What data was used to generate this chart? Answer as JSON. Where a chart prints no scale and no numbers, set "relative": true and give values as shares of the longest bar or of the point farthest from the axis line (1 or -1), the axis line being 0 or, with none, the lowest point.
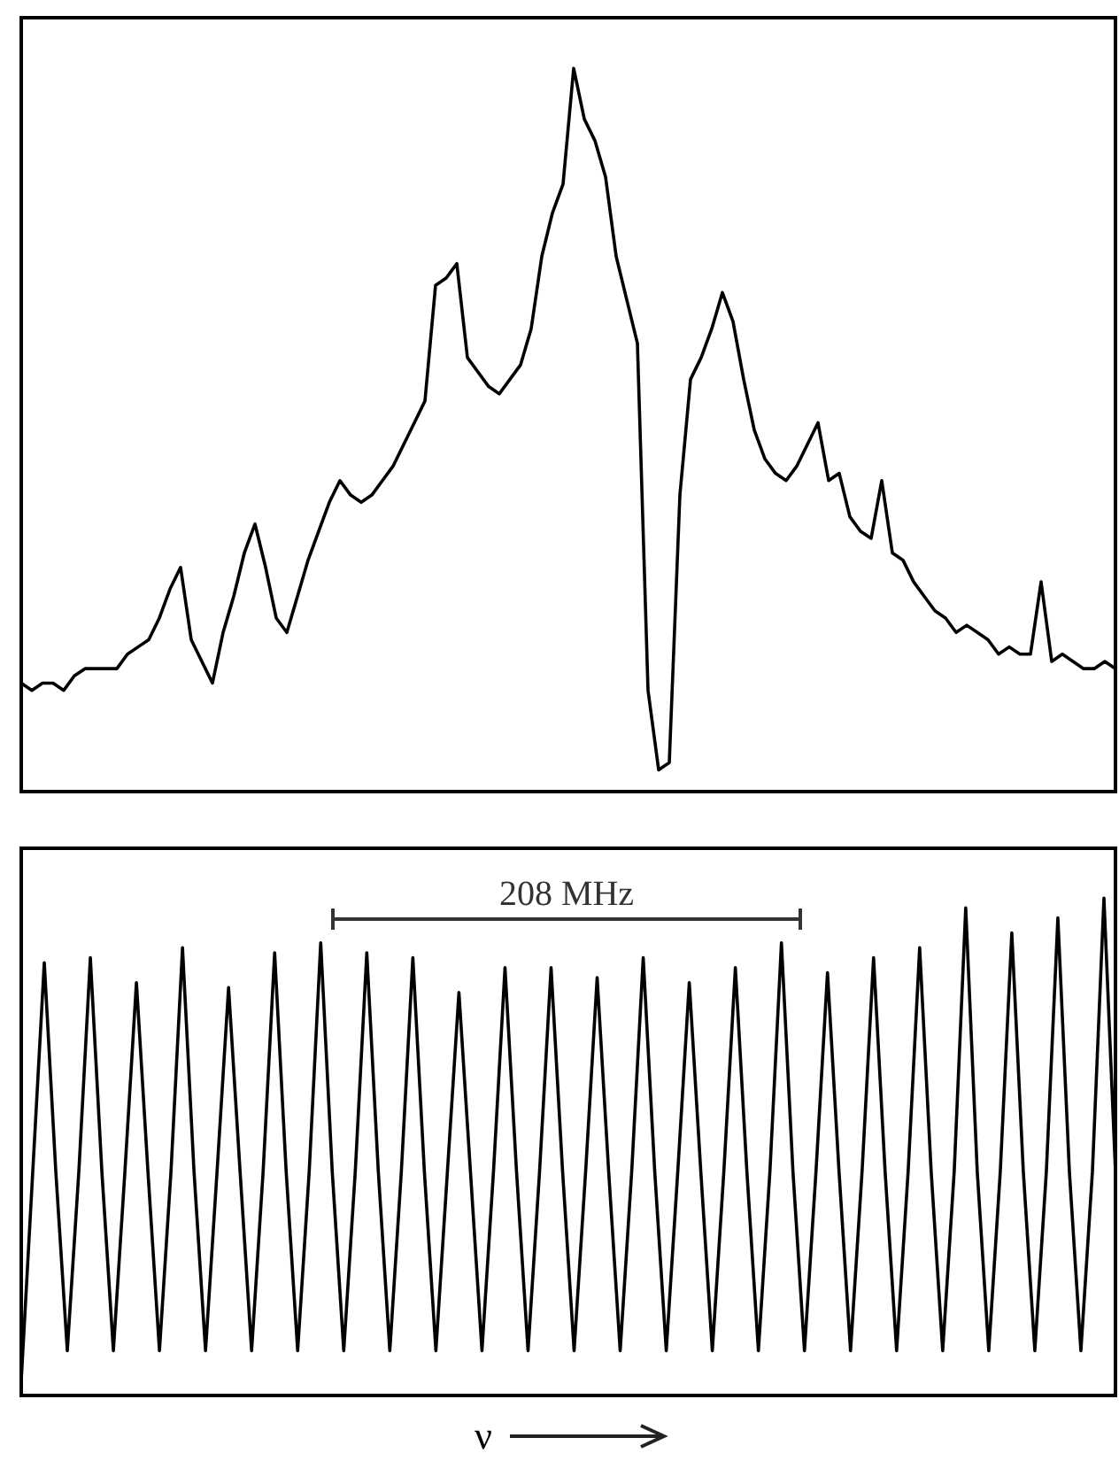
{
  "chart_data": [
    {
      "type": "line",
      "relative": true,
      "categories": [
        null,
        null,
        null,
        null,
        null,
        null,
        null,
        null,
        null,
        null,
        null,
        null,
        null,
        null,
        null,
        null,
        null,
        null,
        null,
        null,
        null,
        null,
        null,
        null,
        null,
        null,
        null,
        null,
        null,
        null,
        null,
        null,
        null,
        null,
        null,
        null,
        null,
        null,
        null,
        null,
        null,
        null,
        null,
        null,
        null,
        null,
        null,
        null,
        null,
        null,
        null,
        null,
        null,
        null,
        null,
        null,
        null,
        null,
        null,
        null,
        null,
        null,
        null,
        null,
        null,
        null,
        null,
        null,
        null,
        null,
        null,
        null,
        null,
        null,
        null,
        null,
        null,
        null,
        null,
        null,
        null,
        null,
        null,
        null,
        null,
        null,
        null,
        null,
        null,
        null,
        null,
        null,
        null,
        null,
        null,
        null,
        null,
        null,
        null,
        null,
        null,
        null,
        null,
        null
      ],
      "series": [
        {
          "color": "#000000",
          "values": [
            0.15,
            0.14,
            0.15,
            0.15,
            0.14,
            0.16,
            0.17,
            0.17,
            0.17,
            0.17,
            0.19,
            0.2,
            0.21,
            0.24,
            0.28,
            0.31,
            0.21,
            0.18,
            0.15,
            0.22,
            0.27,
            0.33,
            0.37,
            0.31,
            0.24,
            0.22,
            0.27,
            0.32,
            0.36,
            0.4,
            0.43,
            0.41,
            0.4,
            0.41,
            0.43,
            0.45,
            0.48,
            0.51,
            0.54,
            0.7,
            0.71,
            0.73,
            0.6,
            0.58,
            0.56,
            0.55,
            0.57,
            0.59,
            0.64,
            0.74,
            0.8,
            0.84,
            1.0,
            0.93,
            0.9,
            0.85,
            0.74,
            0.68,
            0.62,
            0.14,
            0.03,
            0.04,
            0.41,
            0.57,
            0.6,
            0.64,
            0.69,
            0.65,
            0.57,
            0.5,
            0.46,
            0.44,
            0.43,
            0.45,
            0.48,
            0.51,
            0.43,
            0.44,
            0.38,
            0.36,
            0.35,
            0.43,
            0.33,
            0.32,
            0.29,
            0.27,
            0.25,
            0.24,
            0.22,
            0.23,
            0.22,
            0.21,
            0.19,
            0.2,
            0.19,
            0.19,
            0.29,
            0.18,
            0.19,
            0.18,
            0.17,
            0.17,
            0.18,
            0.17
          ]
        }
      ]
    },
    {
      "type": "line",
      "relative": true,
      "xlabel": "ν",
      "annotations": [
        "208 MHz"
      ],
      "categories": [
        null,
        null,
        null,
        null,
        null,
        null,
        null,
        null,
        null,
        null,
        null,
        null,
        null,
        null,
        null,
        null,
        null,
        null,
        null,
        null,
        null,
        null,
        null,
        null,
        null,
        null,
        null,
        null,
        null,
        null,
        null,
        null,
        null,
        null,
        null,
        null,
        null,
        null,
        null,
        null,
        null,
        null,
        null,
        null,
        null,
        null,
        null,
        null,
        null,
        null,
        null,
        null,
        null,
        null,
        null,
        null,
        null,
        null,
        null,
        null,
        null,
        null,
        null,
        null,
        null,
        null,
        null,
        null,
        null,
        null,
        null,
        null,
        null,
        null,
        null,
        null,
        null,
        null,
        null,
        null,
        null,
        null,
        null,
        null,
        null,
        null,
        null,
        null,
        null,
        null,
        null,
        null,
        null,
        null,
        null,
        null
      ],
      "series": [
        {
          "color": "#000000",
          "values": [
            0.03,
            0.45,
            0.87,
            0.45,
            0.09,
            0.45,
            0.88,
            0.45,
            0.09,
            0.45,
            0.83,
            0.45,
            0.09,
            0.45,
            0.9,
            0.45,
            0.09,
            0.45,
            0.82,
            0.45,
            0.09,
            0.45,
            0.89,
            0.45,
            0.09,
            0.45,
            0.91,
            0.45,
            0.09,
            0.45,
            0.89,
            0.45,
            0.09,
            0.45,
            0.88,
            0.45,
            0.09,
            0.45,
            0.81,
            0.45,
            0.09,
            0.45,
            0.86,
            0.45,
            0.09,
            0.45,
            0.86,
            0.45,
            0.09,
            0.45,
            0.84,
            0.45,
            0.09,
            0.45,
            0.88,
            0.45,
            0.09,
            0.45,
            0.83,
            0.45,
            0.09,
            0.45,
            0.86,
            0.45,
            0.09,
            0.45,
            0.91,
            0.45,
            0.09,
            0.45,
            0.85,
            0.45,
            0.09,
            0.45,
            0.88,
            0.45,
            0.09,
            0.45,
            0.9,
            0.45,
            0.09,
            0.45,
            0.98,
            0.45,
            0.09,
            0.45,
            0.93,
            0.45,
            0.09,
            0.45,
            0.96,
            0.45,
            0.09,
            0.45,
            1.0,
            0.45
          ]
        }
      ]
    }
  ]
}
